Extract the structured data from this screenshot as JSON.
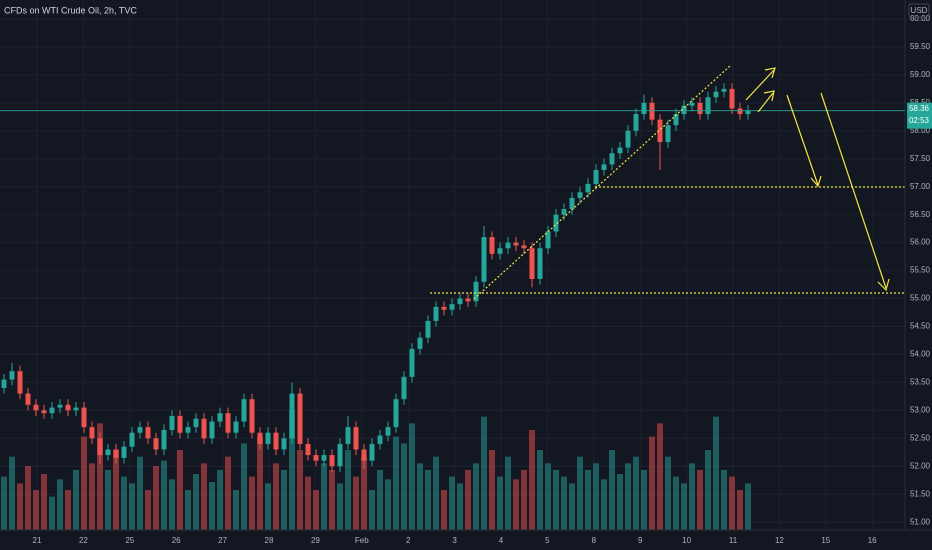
{
  "chart_data": {
    "type": "candlestick",
    "title": "CFDs on WTI Crude Oil, 2h, TVC",
    "currency": "USD",
    "last_price": {
      "value": 58.36,
      "label": "58.36"
    },
    "countdown": "02:53",
    "x_labels": [
      "21",
      "22",
      "25",
      "26",
      "27",
      "28",
      "29",
      "Feb",
      "2",
      "3",
      "4",
      "5",
      "8",
      "9",
      "10",
      "11",
      "12",
      "15",
      "16"
    ],
    "up_color": "#26a69a",
    "down_color": "#ef5350",
    "ylim": [
      50.86,
      60.34
    ],
    "yticks": [
      {
        "value": 51,
        "label": "51.00"
      },
      {
        "value": 51.5,
        "label": "51.50"
      },
      {
        "value": 52,
        "label": "52.00"
      },
      {
        "value": 52.5,
        "label": "52.50"
      },
      {
        "value": 53,
        "label": "53.00"
      },
      {
        "value": 53.5,
        "label": "53.50"
      },
      {
        "value": 54,
        "label": "54.00"
      },
      {
        "value": 54.5,
        "label": "54.50"
      },
      {
        "value": 55,
        "label": "55.00"
      },
      {
        "value": 55.5,
        "label": "55.50"
      },
      {
        "value": 56,
        "label": "56.00"
      },
      {
        "value": 56.5,
        "label": "56.50"
      },
      {
        "value": 57,
        "label": "57.00"
      },
      {
        "value": 57.5,
        "label": "57.50"
      },
      {
        "value": 58,
        "label": "58.00"
      },
      {
        "value": 58.5,
        "label": "58.50"
      },
      {
        "value": 59,
        "label": "59.00"
      },
      {
        "value": 59.5,
        "label": "59.50"
      },
      {
        "value": 60,
        "label": "60.00"
      }
    ],
    "grid": true,
    "open": [
      53.4,
      53.55,
      53.7,
      53.3,
      53.1,
      53.0,
      52.95,
      53.05,
      53.1,
      53.0,
      53.05,
      52.7,
      52.5,
      52.2,
      52.3,
      52.15,
      52.35,
      52.6,
      52.7,
      52.5,
      52.3,
      52.65,
      52.9,
      52.6,
      52.7,
      52.85,
      52.5,
      52.8,
      52.95,
      52.6,
      52.8,
      53.2,
      52.6,
      52.4,
      52.6,
      52.3,
      52.5,
      53.3,
      52.4,
      52.2,
      52.1,
      52.2,
      52.0,
      52.4,
      52.7,
      52.3,
      52.1,
      52.4,
      52.55,
      52.7,
      53.2,
      53.6,
      54.1,
      54.3,
      54.6,
      54.85,
      54.8,
      54.9,
      55.0,
      54.95,
      55.3,
      56.1,
      55.8,
      55.9,
      56.0,
      55.95,
      55.9,
      55.35,
      55.9,
      56.2,
      56.5,
      56.6,
      56.8,
      56.9,
      57.05,
      57.3,
      57.4,
      57.6,
      57.7,
      58.0,
      58.3,
      58.5,
      58.2,
      57.8,
      58.1,
      58.3,
      58.45,
      58.5,
      58.3,
      58.6,
      58.7,
      58.75,
      58.4,
      58.3
    ],
    "high": [
      53.65,
      53.85,
      53.8,
      53.4,
      53.2,
      53.1,
      53.15,
      53.2,
      53.2,
      53.15,
      53.15,
      52.8,
      52.6,
      52.4,
      52.4,
      52.45,
      52.7,
      52.8,
      52.8,
      52.6,
      52.75,
      53.0,
      53.0,
      52.8,
      52.95,
      52.95,
      52.9,
      53.05,
      53.05,
      52.9,
      53.3,
      53.3,
      52.7,
      52.7,
      52.7,
      52.6,
      53.5,
      53.4,
      52.5,
      52.3,
      52.3,
      52.3,
      52.5,
      52.9,
      52.8,
      52.4,
      52.5,
      52.65,
      52.8,
      53.3,
      53.7,
      54.2,
      54.4,
      54.7,
      54.95,
      54.95,
      55.0,
      55.1,
      55.1,
      55.4,
      56.3,
      56.2,
      56.0,
      56.1,
      56.1,
      56.05,
      56.0,
      56.0,
      56.3,
      56.6,
      56.7,
      56.9,
      57.0,
      57.15,
      57.4,
      57.5,
      57.7,
      57.8,
      58.1,
      58.4,
      58.65,
      58.6,
      58.3,
      58.2,
      58.4,
      58.55,
      58.6,
      58.6,
      58.7,
      58.8,
      58.85,
      58.85,
      58.5,
      58.46
    ],
    "low": [
      53.3,
      53.45,
      53.2,
      53.0,
      52.9,
      52.85,
      52.85,
      52.95,
      52.9,
      52.9,
      52.6,
      52.4,
      52.05,
      52.1,
      52.05,
      52.05,
      52.25,
      52.5,
      52.4,
      52.2,
      52.2,
      52.55,
      52.5,
      52.5,
      52.6,
      52.4,
      52.4,
      52.7,
      52.5,
      52.5,
      52.7,
      52.5,
      52.3,
      52.3,
      52.2,
      52.2,
      52.4,
      52.3,
      52.1,
      52.0,
      52.0,
      51.9,
      51.9,
      52.3,
      52.2,
      51.95,
      52.0,
      52.3,
      52.45,
      52.6,
      53.1,
      53.5,
      54.0,
      54.2,
      54.5,
      54.7,
      54.7,
      54.8,
      54.85,
      54.85,
      55.2,
      55.7,
      55.7,
      55.8,
      55.85,
      55.8,
      55.2,
      55.25,
      55.8,
      56.1,
      56.4,
      56.5,
      56.7,
      56.8,
      56.95,
      57.2,
      57.3,
      57.5,
      57.6,
      57.9,
      58.2,
      58.1,
      57.3,
      57.7,
      58.0,
      58.2,
      58.35,
      58.2,
      58.2,
      58.5,
      58.6,
      58.3,
      58.2,
      58.2
    ],
    "close": [
      53.55,
      53.7,
      53.3,
      53.1,
      53.0,
      52.95,
      53.05,
      53.1,
      53.0,
      53.05,
      52.7,
      52.5,
      52.2,
      52.3,
      52.15,
      52.35,
      52.6,
      52.7,
      52.5,
      52.3,
      52.65,
      52.9,
      52.6,
      52.7,
      52.85,
      52.5,
      52.8,
      52.95,
      52.6,
      52.8,
      53.2,
      52.6,
      52.4,
      52.6,
      52.3,
      52.5,
      53.3,
      52.4,
      52.2,
      52.1,
      52.2,
      52.0,
      52.4,
      52.7,
      52.3,
      52.1,
      52.4,
      52.55,
      52.7,
      53.2,
      53.6,
      54.1,
      54.3,
      54.6,
      54.85,
      54.8,
      54.9,
      55.0,
      54.95,
      55.3,
      56.1,
      55.8,
      55.9,
      56.0,
      55.95,
      55.9,
      55.35,
      55.9,
      56.2,
      56.5,
      56.6,
      56.8,
      56.9,
      57.05,
      57.3,
      57.4,
      57.6,
      57.7,
      58.0,
      58.3,
      58.5,
      58.2,
      57.8,
      58.1,
      58.3,
      58.45,
      58.5,
      58.3,
      58.6,
      58.7,
      58.75,
      58.4,
      58.3,
      58.36
    ],
    "volume": [
      40,
      55,
      35,
      48,
      30,
      42,
      25,
      38,
      30,
      45,
      70,
      50,
      80,
      45,
      60,
      40,
      35,
      55,
      30,
      48,
      52,
      38,
      60,
      30,
      42,
      50,
      36,
      45,
      55,
      30,
      65,
      40,
      70,
      35,
      50,
      45,
      90,
      60,
      40,
      30,
      50,
      45,
      35,
      60,
      40,
      55,
      30,
      45,
      38,
      70,
      65,
      80,
      50,
      45,
      55,
      30,
      40,
      35,
      45,
      50,
      85,
      60,
      40,
      55,
      38,
      45,
      75,
      60,
      50,
      45,
      40,
      35,
      55,
      45,
      50,
      38,
      60,
      42,
      50,
      55,
      45,
      70,
      80,
      55,
      40,
      35,
      50,
      45,
      60,
      85,
      45,
      40,
      30,
      35
    ]
  }
}
